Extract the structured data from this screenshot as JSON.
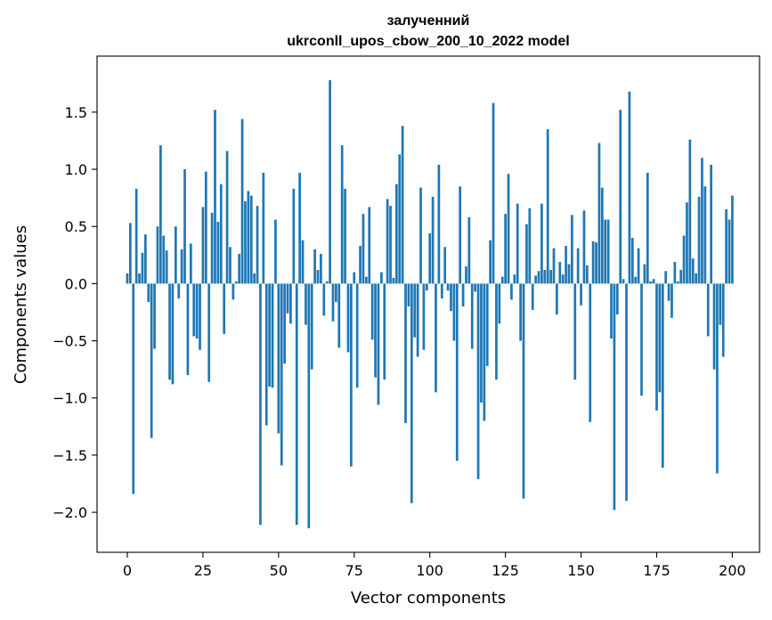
{
  "chart_data": {
    "type": "bar",
    "title_line1": "залученний",
    "title_line2": "ukrconll_upos_cbow_200_10_2022 model",
    "xlabel": "Vector components",
    "ylabel": "Components values",
    "xlim": [
      -10,
      209
    ],
    "ylim": [
      -2.35,
      1.99
    ],
    "x_ticks": [
      0,
      25,
      50,
      75,
      100,
      125,
      150,
      175,
      200
    ],
    "y_ticks": [
      -2.0,
      -1.5,
      -1.0,
      -0.5,
      0.0,
      0.5,
      1.0,
      1.5
    ],
    "x_tick_labels": [
      "0",
      "25",
      "50",
      "75",
      "100",
      "125",
      "150",
      "175",
      "200"
    ],
    "y_tick_labels": [
      "−2.0",
      "−1.5",
      "−1.0",
      "−0.5",
      "0.0",
      "0.5",
      "1.0",
      "1.5"
    ],
    "bar_color": "#1f77b4",
    "values": [
      0.09,
      0.53,
      -1.84,
      0.83,
      0.09,
      0.27,
      0.43,
      -0.16,
      -1.35,
      -0.57,
      0.5,
      1.21,
      0.42,
      0.29,
      -0.84,
      -0.88,
      0.5,
      -0.13,
      0.3,
      1.0,
      -0.8,
      0.35,
      -0.46,
      -0.48,
      -0.58,
      0.67,
      0.98,
      -0.86,
      0.62,
      1.52,
      0.54,
      0.87,
      -0.44,
      1.16,
      0.32,
      -0.14,
      0.02,
      0.26,
      1.44,
      0.72,
      0.81,
      0.77,
      0.09,
      0.68,
      -2.11,
      0.97,
      -1.24,
      -0.9,
      -0.91,
      0.56,
      -1.31,
      -1.59,
      -0.7,
      -0.26,
      -0.35,
      0.83,
      -2.11,
      0.97,
      0.38,
      -0.36,
      -2.14,
      -0.75,
      0.3,
      0.12,
      0.26,
      -0.28,
      0.02,
      1.78,
      -0.33,
      -0.16,
      -0.56,
      1.21,
      0.83,
      -0.6,
      -1.6,
      0.1,
      -0.91,
      0.33,
      0.61,
      0.06,
      0.67,
      -0.49,
      -0.82,
      -1.06,
      0.1,
      -0.84,
      0.74,
      0.68,
      0.05,
      0.87,
      1.13,
      1.38,
      -1.22,
      -0.2,
      -1.92,
      -0.47,
      -0.64,
      0.84,
      -0.58,
      -0.06,
      0.44,
      0.76,
      -0.95,
      1.04,
      -0.13,
      0.32,
      -0.06,
      -0.24,
      -0.5,
      -1.55,
      0.85,
      -0.2,
      0.15,
      0.58,
      -0.57,
      -0.07,
      -1.71,
      -1.04,
      -1.2,
      -0.72,
      0.38,
      1.58,
      -0.84,
      -0.35,
      0.06,
      0.61,
      0.96,
      -0.14,
      0.08,
      0.7,
      -0.5,
      -1.88,
      0.52,
      0.66,
      -0.23,
      0.07,
      0.11,
      0.7,
      0.12,
      1.35,
      0.12,
      0.31,
      -0.27,
      0.19,
      0.08,
      0.33,
      0.17,
      0.6,
      -0.84,
      0.31,
      -0.19,
      0.64,
      0.16,
      -1.21,
      0.37,
      0.36,
      1.23,
      0.84,
      0.56,
      0.56,
      -0.48,
      -1.98,
      -0.27,
      1.52,
      0.04,
      -1.9,
      1.68,
      0.4,
      0.06,
      0.31,
      -0.98,
      0.17,
      0.97,
      0.02,
      0.04,
      -1.11,
      -0.95,
      -1.61,
      0.11,
      -0.15,
      -0.3,
      0.19,
      0.02,
      0.12,
      0.42,
      0.71,
      1.26,
      0.22,
      0.09,
      0.76,
      1.1,
      0.85,
      -0.46,
      1.04,
      -0.75,
      -1.66,
      -0.36,
      -0.64,
      0.65,
      0.56,
      0.77
    ]
  }
}
